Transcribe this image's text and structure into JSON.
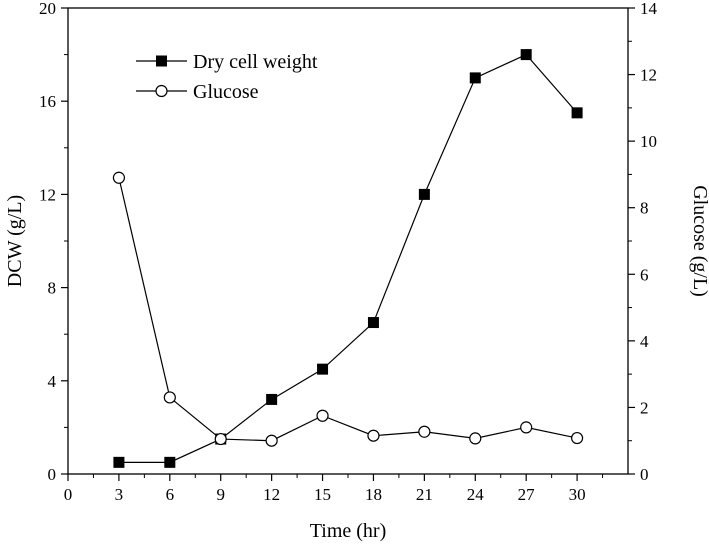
{
  "chart_data": {
    "type": "line",
    "x": [
      3,
      6,
      9,
      12,
      15,
      18,
      21,
      24,
      27,
      30
    ],
    "xlabel": "Time (hr)",
    "ylabel_left": "DCW (g/L)",
    "ylabel_right": "Glucose (g/L)",
    "xlim": [
      0,
      33
    ],
    "ylim_left": [
      0,
      20
    ],
    "ylim_right": [
      0,
      14
    ],
    "xticks": [
      0,
      3,
      6,
      9,
      12,
      15,
      18,
      21,
      24,
      27,
      30
    ],
    "yticks_left": [
      0,
      4,
      8,
      12,
      16,
      20
    ],
    "yticks_right": [
      0,
      2,
      4,
      6,
      8,
      10,
      12,
      14
    ],
    "grid": false,
    "legend_position": "top-left",
    "series": [
      {
        "name": "Dry cell weight",
        "axis": "left",
        "marker": "filled-square",
        "values": [
          0.5,
          0.5,
          1.5,
          3.2,
          4.5,
          6.5,
          12.0,
          17.0,
          18.0,
          15.5
        ]
      },
      {
        "name": "Glucose",
        "axis": "right",
        "marker": "open-circle",
        "values": [
          8.9,
          2.3,
          1.05,
          1.0,
          1.75,
          1.15,
          1.27,
          1.07,
          1.4,
          1.08
        ]
      }
    ],
    "colors": {
      "line": "#000000",
      "background": "#ffffff"
    }
  }
}
